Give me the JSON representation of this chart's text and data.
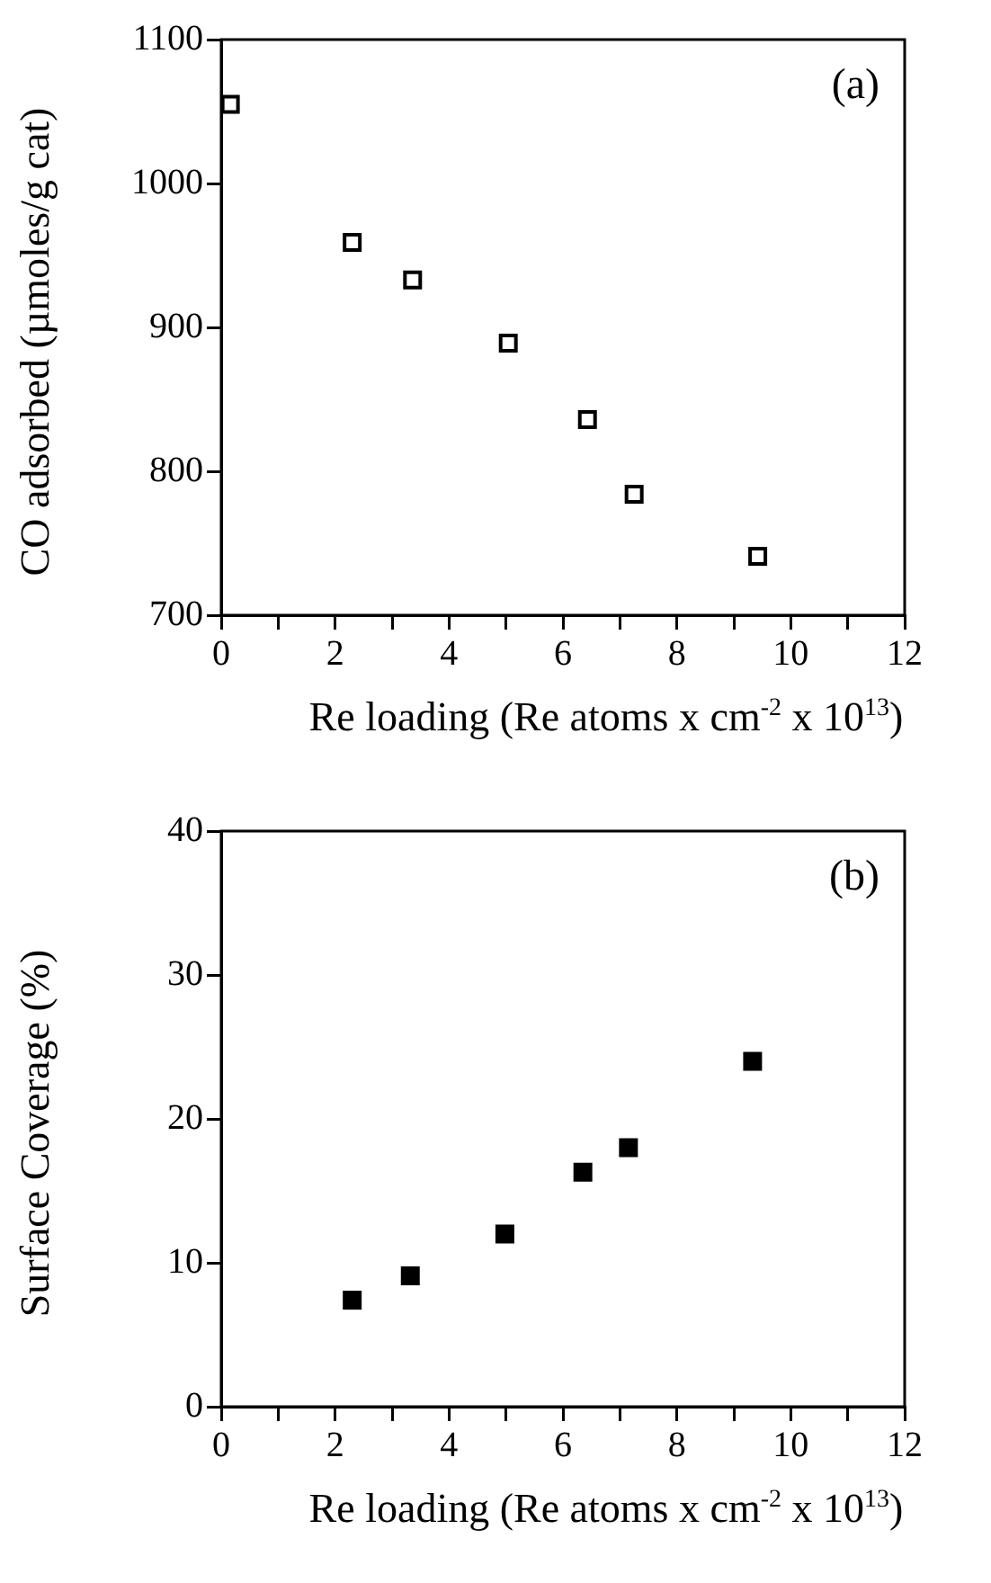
{
  "chart_data": [
    {
      "type": "scatter",
      "xlabel": "Re loading (Re atoms x cm$^{-2}$ x 10$^{13}$)",
      "ylabel": "CO adsorbed (µmoles/g cat)",
      "annotations": [
        "(a)"
      ],
      "series": [
        {
          "color": "#000000",
          "x": [
            0.16,
            2.3,
            3.36,
            5.04,
            6.43,
            7.25,
            9.42
          ],
          "values": [
            1055,
            959,
            933,
            889,
            836,
            784,
            741
          ]
        }
      ],
      "xlim": [
        0,
        12
      ],
      "xticks": [
        0,
        {
          "value": 1,
          "label": null
        },
        2,
        {
          "value": 3,
          "label": null
        },
        4,
        {
          "value": 5,
          "label": null
        },
        6,
        {
          "value": 7,
          "label": null
        },
        8,
        {
          "value": 9,
          "label": null
        },
        10,
        {
          "value": 11,
          "label": null
        },
        12
      ],
      "ylim": [
        700,
        1100
      ],
      "yticks": [
        700,
        800,
        900,
        1000,
        1100
      ],
      "marker": "square",
      "grid": false,
      "legend": false
    },
    {
      "type": "scatter",
      "xlabel": "Re loading (Re atoms x cm$^{-2}$ x 10$^{13}$)",
      "ylabel": "Surface Coverage (%)",
      "annotations": [
        "(b)"
      ],
      "series": [
        {
          "color": "#000000",
          "x": [
            2.3,
            3.32,
            4.98,
            6.35,
            7.15,
            9.33
          ],
          "values": [
            7.4,
            9.1,
            12.0,
            16.3,
            18.0,
            24.0
          ]
        }
      ],
      "xlim": [
        0,
        12
      ],
      "xticks": [
        0,
        {
          "value": 1,
          "label": null
        },
        2,
        {
          "value": 3,
          "label": null
        },
        4,
        {
          "value": 5,
          "label": null
        },
        6,
        {
          "value": 7,
          "label": null
        },
        8,
        {
          "value": 9,
          "label": null
        },
        10,
        {
          "value": 11,
          "label": null
        },
        12
      ],
      "ylim": [
        0,
        40
      ],
      "yticks": [
        0,
        10,
        20,
        30,
        40
      ],
      "marker": "square",
      "grid": false,
      "legend": false
    }
  ]
}
